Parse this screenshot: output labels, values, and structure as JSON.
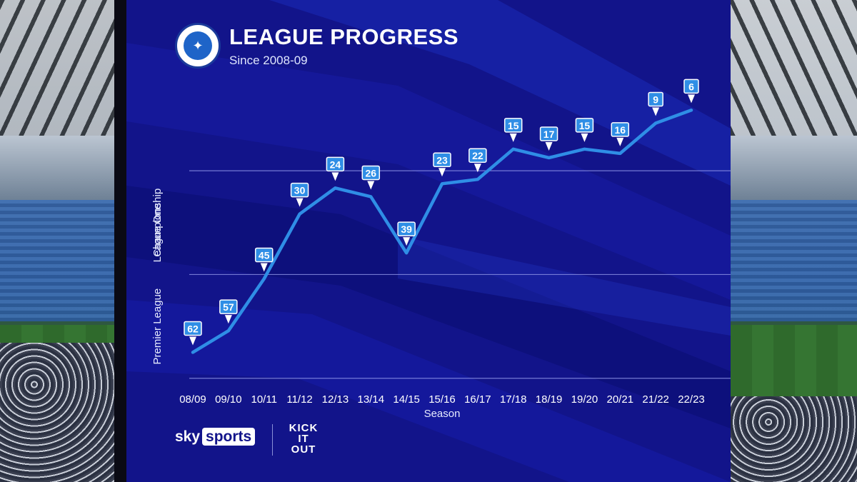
{
  "header": {
    "title": "LEAGUE PROGRESS",
    "subtitle": "Since 2008-09",
    "crest_icon": "club-crest-icon"
  },
  "colors": {
    "background": "#12148a",
    "line": "#2f8ee6",
    "label_box": "#2f8ee6",
    "gridline": "#8d93e6"
  },
  "chart_data": {
    "type": "line",
    "title": "LEAGUE PROGRESS",
    "subtitle": "Since 2008-09",
    "xlabel": "Season",
    "ylabel": "",
    "y_bands": [
      "League One",
      "Championship",
      "Premier League"
    ],
    "ylim": [
      72,
      0
    ],
    "gridlines_at": [
      20,
      44,
      68
    ],
    "categories": [
      "08/09",
      "09/10",
      "10/11",
      "11/12",
      "12/13",
      "13/14",
      "14/15",
      "15/16",
      "16/17",
      "17/18",
      "18/19",
      "19/20",
      "20/21",
      "21/22",
      "22/23"
    ],
    "series": [
      {
        "values": [
          62,
          57,
          45,
          30,
          24,
          26,
          39,
          23,
          22,
          15,
          17,
          15,
          16,
          9,
          6
        ]
      }
    ],
    "grid": true,
    "legend": "none"
  },
  "footer": {
    "broadcaster_sky": "sky",
    "broadcaster_sports": "sports",
    "partner_line1": "KICK",
    "partner_line2": "IT",
    "partner_line3": "OUT"
  }
}
